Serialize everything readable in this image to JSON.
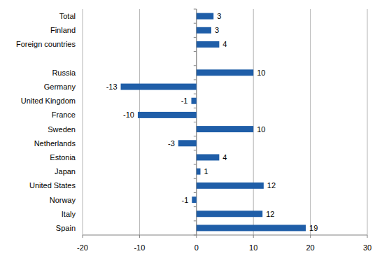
{
  "chart_data": {
    "type": "bar",
    "orientation": "horizontal",
    "categories": [
      "Total",
      "Finland",
      "Foreign countries",
      null,
      "Russia",
      "Germany",
      "United Kingdom",
      "France",
      "Sweden",
      "Netherlands",
      "Estonia",
      "Japan",
      "United States",
      "Norway",
      "Italy",
      "Spain"
    ],
    "values": [
      3,
      2.6,
      4,
      null,
      10,
      -13.3,
      -0.9,
      -10.3,
      10,
      -3.2,
      4,
      0.7,
      11.8,
      -0.8,
      11.6,
      19.2
    ],
    "value_labels": [
      "3",
      "3",
      "4",
      null,
      "10",
      "-13",
      "-1",
      "-10",
      "10",
      "-3",
      "4",
      "1",
      "12",
      "-1",
      "12",
      "19"
    ],
    "color": "#1f5ea8",
    "xlim": [
      -20,
      30
    ],
    "xticks": [
      -20,
      -10,
      0,
      10,
      20,
      30
    ],
    "grid": true,
    "data_labels": true
  }
}
